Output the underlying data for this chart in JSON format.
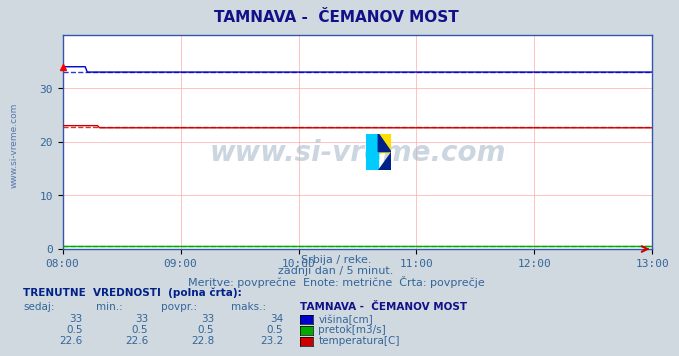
{
  "title_text": "TAMNAVA -  ČEMANOV MOST",
  "bg_color": "#d0d8e0",
  "plot_bg": "#ffffff",
  "grid_color_x": "#ffaaaa",
  "grid_color_y": "#ffaaaa",
  "x_ticks": [
    "08:00",
    "09:00",
    "10:00",
    "11:00",
    "12:00",
    "13:00"
  ],
  "ylim": [
    0,
    40
  ],
  "y_ticks": [
    0,
    10,
    20,
    30
  ],
  "visina_color": "#0000cc",
  "pretok_color": "#00aa00",
  "temp_color": "#cc0000",
  "visina_val": 33,
  "visina_min": 33,
  "visina_avg": 33,
  "visina_max": 34,
  "pretok_val": 0.5,
  "pretok_min": 0.5,
  "pretok_avg": 0.5,
  "pretok_max": 0.5,
  "temp_val": 22.6,
  "temp_min": 22.6,
  "temp_avg": 22.8,
  "temp_max": 23.2,
  "subtitle1": "Srbija / reke.",
  "subtitle2": "zadnji dan / 5 minut.",
  "subtitle3": "Meritve: povprečne  Enote: metrične  Črta: povprečje",
  "table_header": "TRENUTNE  VREDNOSTI  (polna črta):",
  "col_headers": [
    "sedaj:",
    "min.:",
    "povpr.:",
    "maks.:"
  ],
  "station_name": "TAMNAVA -  ČEMANOV MOST",
  "watermark": "www.si-vreme.com",
  "left_label": "www.si-vreme.com"
}
